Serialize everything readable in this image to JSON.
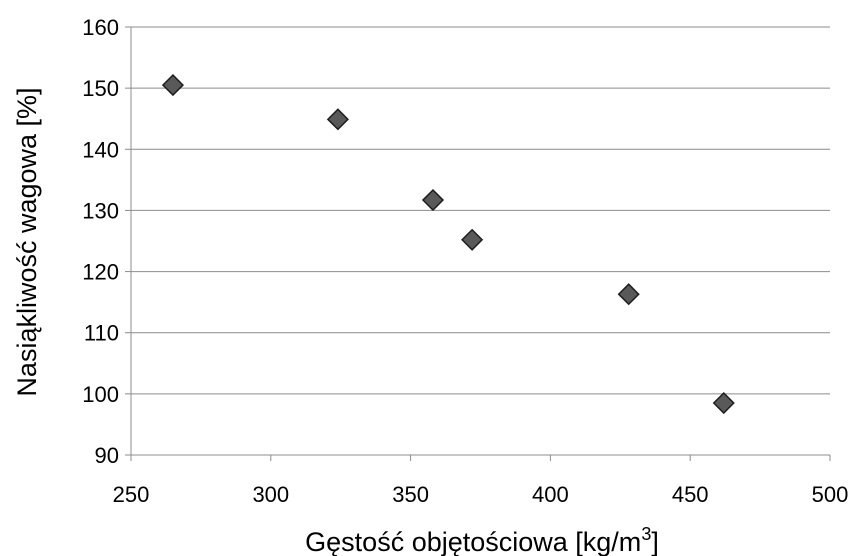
{
  "chart_data": {
    "type": "scatter",
    "title": "",
    "xlabel": "Gęstość objętościowa [kg/m",
    "xlabel_sup": "3",
    "xlabel_end": "]",
    "ylabel": "Nasiąkliwość wagowa [%]",
    "xlim": [
      250,
      500
    ],
    "ylim": [
      90,
      160
    ],
    "xticks": [
      250,
      300,
      350,
      400,
      450,
      500
    ],
    "yticks": [
      90,
      100,
      110,
      120,
      130,
      140,
      150,
      160
    ],
    "grid": "horizontal",
    "legend": "none",
    "marker": "diamond",
    "marker_color": "#595959",
    "series": [
      {
        "points": [
          {
            "x": 265,
            "y": 150.5
          },
          {
            "x": 324,
            "y": 144.9
          },
          {
            "x": 358,
            "y": 131.7
          },
          {
            "x": 372,
            "y": 125.2
          },
          {
            "x": 428,
            "y": 116.3
          },
          {
            "x": 462,
            "y": 98.5
          }
        ]
      }
    ]
  }
}
